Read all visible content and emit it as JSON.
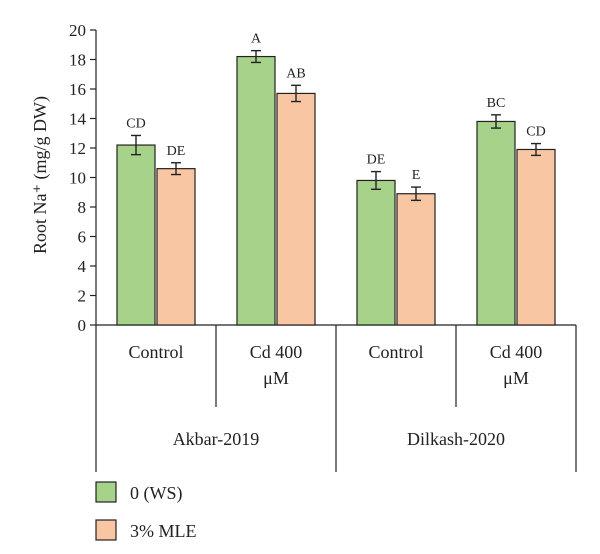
{
  "chart_data": {
    "type": "bar",
    "ylabel": "Root Na⁺ (mg/g DW)",
    "ylim": [
      0,
      20
    ],
    "yticks": [
      0,
      2,
      4,
      6,
      8,
      10,
      12,
      14,
      16,
      18,
      20
    ],
    "grid": false,
    "legend_position": "bottom-left",
    "groups": [
      {
        "label": "Akbar-2019",
        "categories": [
          "Control",
          "Cd 400\nμM"
        ]
      },
      {
        "label": "Dilkash-2020",
        "categories": [
          "Control",
          "Cd 400\nμM"
        ]
      }
    ],
    "categories": [
      "Control",
      "Cd 400 μM",
      "Control",
      "Cd 400 μM"
    ],
    "series": [
      {
        "name": "0 (WS)",
        "color": "#a6d28a",
        "values": [
          12.2,
          18.2,
          9.8,
          13.8
        ],
        "errors": [
          0.65,
          0.4,
          0.6,
          0.45
        ],
        "letters": [
          "CD",
          "A",
          "DE",
          "BC"
        ]
      },
      {
        "name": "3% MLE",
        "color": "#f9c6a3",
        "values": [
          10.6,
          15.7,
          8.9,
          11.9
        ],
        "errors": [
          0.4,
          0.55,
          0.45,
          0.4
        ],
        "letters": [
          "DE",
          "AB",
          "E",
          "CD"
        ]
      }
    ]
  }
}
